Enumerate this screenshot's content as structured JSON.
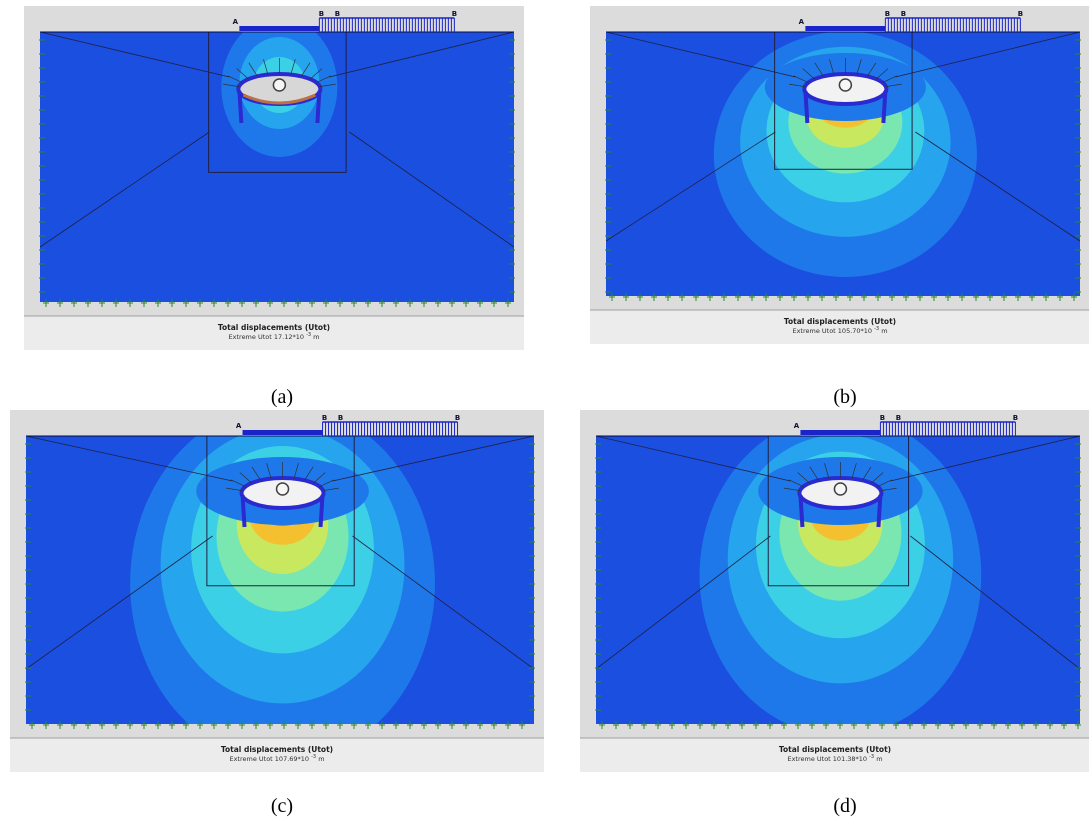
{
  "load_labels": {
    "a": "A",
    "b": "B"
  },
  "panels": [
    {
      "id": "a",
      "caption": "(a)",
      "title": "Total displacements (Utot)",
      "extreme_text": "Extreme Utot 17.12*10",
      "exponent": "-3",
      "unit": "m",
      "contour_level": 0
    },
    {
      "id": "b",
      "caption": "(b)",
      "title": "Total displacements (Utot)",
      "extreme_text": "Extreme Utot 105.70*10",
      "exponent": "-3",
      "unit": "m",
      "contour_level": 0.75
    },
    {
      "id": "c",
      "caption": "(c)",
      "title": "Total displacements (Utot)",
      "extreme_text": "Extreme Utot 107.69*10",
      "exponent": "-3",
      "unit": "m",
      "contour_level": 1.0
    },
    {
      "id": "d",
      "caption": "(d)",
      "title": "Total displacements (Utot)",
      "extreme_text": "Extreme Utot 101.38*10",
      "exponent": "-3",
      "unit": "m",
      "contour_level": 0.9
    }
  ],
  "colors": {
    "background_blue": "#1a4fe0",
    "frame": "#dcdcdc",
    "footer": "#ececec",
    "load": "#1a24c8",
    "lining": "#2a2ad0",
    "mesh_line": "#202040",
    "fixity": "#2c8a2c"
  }
}
